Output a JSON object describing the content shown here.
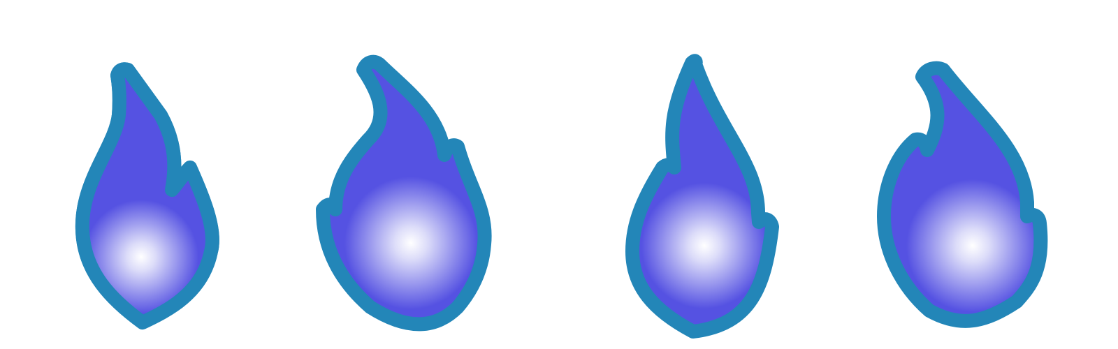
{
  "flames": [
    {
      "name": "flame-icon-1"
    },
    {
      "name": "flame-icon-2"
    },
    {
      "name": "flame-icon-3"
    },
    {
      "name": "flame-icon-4"
    }
  ],
  "colors": {
    "background": "#ffffff",
    "outline": "#2386b8",
    "fill": "#5552e2",
    "glow_center": "#ffffff",
    "glow_edge": "#5552e2"
  }
}
